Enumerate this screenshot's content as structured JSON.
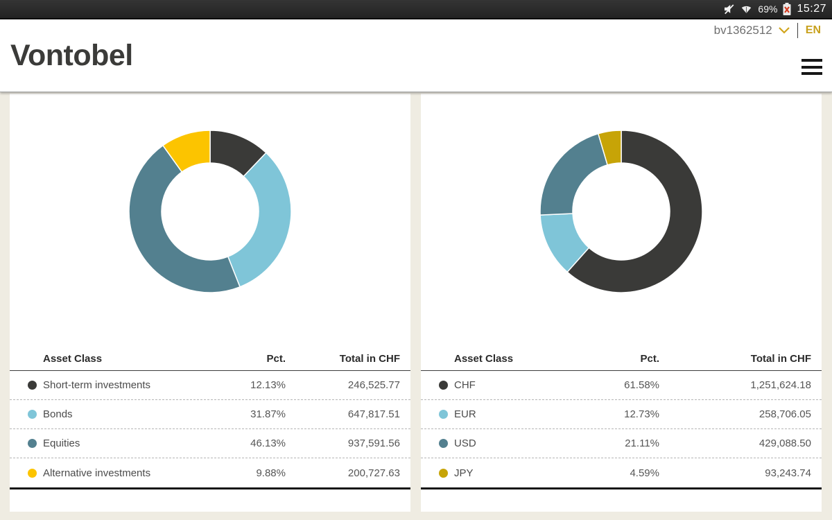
{
  "status_bar": {
    "battery_pct": "69%",
    "time": "15:27",
    "icons": [
      "mute-icon",
      "wifi-icon",
      "battery-error-icon"
    ]
  },
  "header": {
    "logo": "Vontobel",
    "account_id": "bv1362512",
    "language": "EN"
  },
  "colors": {
    "dark": "#3a3a38",
    "light_blue": "#7fc5d8",
    "teal": "#53808f",
    "yellow": "#fcc400",
    "gold": "#c7a407",
    "accent_gold": "#c8a11d",
    "page_bg": "#efece2"
  },
  "chart_data": [
    {
      "type": "pie",
      "subtype": "donut",
      "legend_position": "table-below",
      "columns": [
        "Asset Class",
        "Pct.",
        "Total in CHF"
      ],
      "values": [
        12.13,
        31.87,
        46.13,
        9.88
      ],
      "rows": [
        {
          "label": "Short-term investments",
          "pct": "12.13%",
          "total": "246,525.77",
          "color": "#3a3a38"
        },
        {
          "label": "Bonds",
          "pct": "31.87%",
          "total": "647,817.51",
          "color": "#7fc5d8"
        },
        {
          "label": "Equities",
          "pct": "46.13%",
          "total": "937,591.56",
          "color": "#53808f"
        },
        {
          "label": "Alternative investments",
          "pct": "9.88%",
          "total": "200,727.63",
          "color": "#fcc400"
        }
      ]
    },
    {
      "type": "pie",
      "subtype": "donut",
      "legend_position": "table-below",
      "columns": [
        "Asset Class",
        "Pct.",
        "Total in CHF"
      ],
      "values": [
        61.58,
        12.73,
        21.11,
        4.59
      ],
      "rows": [
        {
          "label": "CHF",
          "pct": "61.58%",
          "total": "1,251,624.18",
          "color": "#3a3a38"
        },
        {
          "label": "EUR",
          "pct": "12.73%",
          "total": "258,706.05",
          "color": "#7fc5d8"
        },
        {
          "label": "USD",
          "pct": "21.11%",
          "total": "429,088.50",
          "color": "#53808f"
        },
        {
          "label": "JPY",
          "pct": "4.59%",
          "total": "93,243.74",
          "color": "#c7a407"
        }
      ]
    }
  ]
}
